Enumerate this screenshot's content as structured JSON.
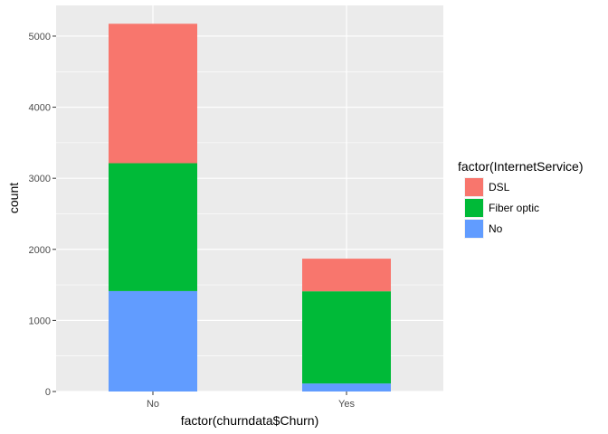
{
  "chart_data": {
    "type": "bar",
    "stacked": true,
    "categories": [
      "No",
      "Yes"
    ],
    "series": [
      {
        "name": "DSL",
        "values": [
          1962,
          459
        ],
        "color": "#F8766D"
      },
      {
        "name": "Fiber optic",
        "values": [
          1799,
          1297
        ],
        "color": "#00BA38"
      },
      {
        "name": "No",
        "values": [
          1413,
          113
        ],
        "color": "#619CFF"
      }
    ],
    "xlabel": "factor(churndata$Churn)",
    "ylabel": "count",
    "ylim": [
      0,
      5432
    ],
    "yticks": [
      0,
      1000,
      2000,
      3000,
      4000,
      5000
    ],
    "grid": true,
    "legend": {
      "title": "factor(InternetService)",
      "position": "right"
    },
    "panel_background": "#EBEBEB",
    "grid_color": "#FFFFFF"
  }
}
